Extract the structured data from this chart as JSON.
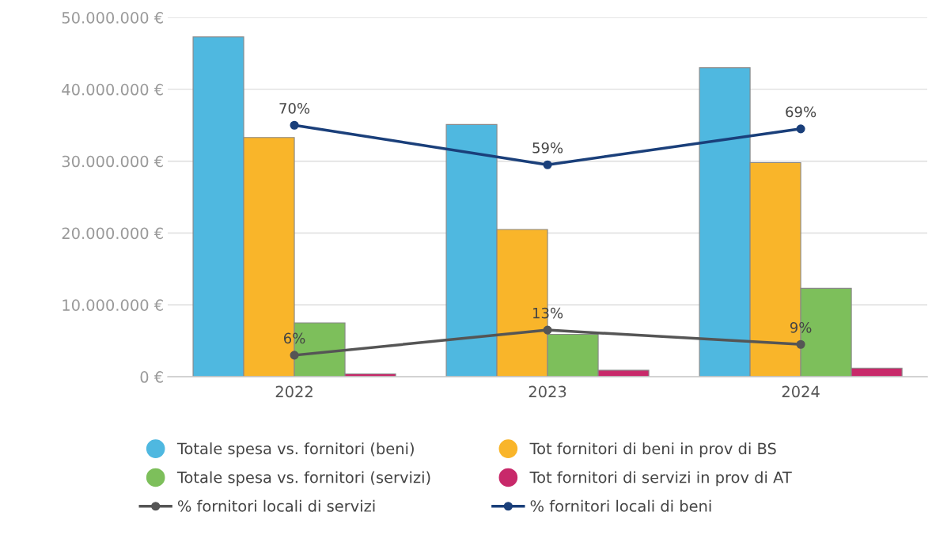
{
  "chart_data": {
    "type": "bar",
    "categories": [
      "2022",
      "2023",
      "2024"
    ],
    "series": [
      {
        "name": "Totale spesa vs. fornitori (beni)",
        "color": "#4fb8e0",
        "values": [
          47300000,
          35100000,
          43000000
        ]
      },
      {
        "name": "Tot fornitori di beni in prov di BS",
        "color": "#f9b52a",
        "values": [
          33300000,
          20500000,
          29800000
        ]
      },
      {
        "name": "Totale spesa vs. fornitori (servizi)",
        "color": "#7dbf5b",
        "values": [
          7500000,
          5900000,
          12300000
        ]
      },
      {
        "name": "Tot fornitori di servizi in prov di AT",
        "color": "#c8296a",
        "values": [
          400000,
          900000,
          1200000
        ]
      },
      {
        "name": "% fornitori locali di servizi",
        "type": "line",
        "axis": "y2",
        "color": "#555555",
        "values": [
          6,
          13,
          9
        ],
        "value_labels": [
          "6%",
          "13%",
          "9%"
        ]
      },
      {
        "name": "% fornitori locali di beni",
        "type": "line",
        "axis": "y2",
        "color": "#1a3f7a",
        "values": [
          70,
          59,
          69
        ],
        "value_labels": [
          "70%",
          "59%",
          "69%"
        ]
      }
    ],
    "ylim": [
      0,
      50000000
    ],
    "yticks": [
      {
        "value": 0,
        "label": "0 €"
      },
      {
        "value": 10000000,
        "label": "10.000.000 €"
      },
      {
        "value": 20000000,
        "label": "20.000.000 €"
      },
      {
        "value": 30000000,
        "label": "30.000.000 €"
      },
      {
        "value": 40000000,
        "label": "40.000.000 €"
      },
      {
        "value": 50000000,
        "label": "50.000.000 €"
      }
    ],
    "y2lim": [
      0,
      100
    ],
    "grid": "y",
    "legend": "bottom",
    "marker": "circle",
    "line_style": "solid"
  }
}
